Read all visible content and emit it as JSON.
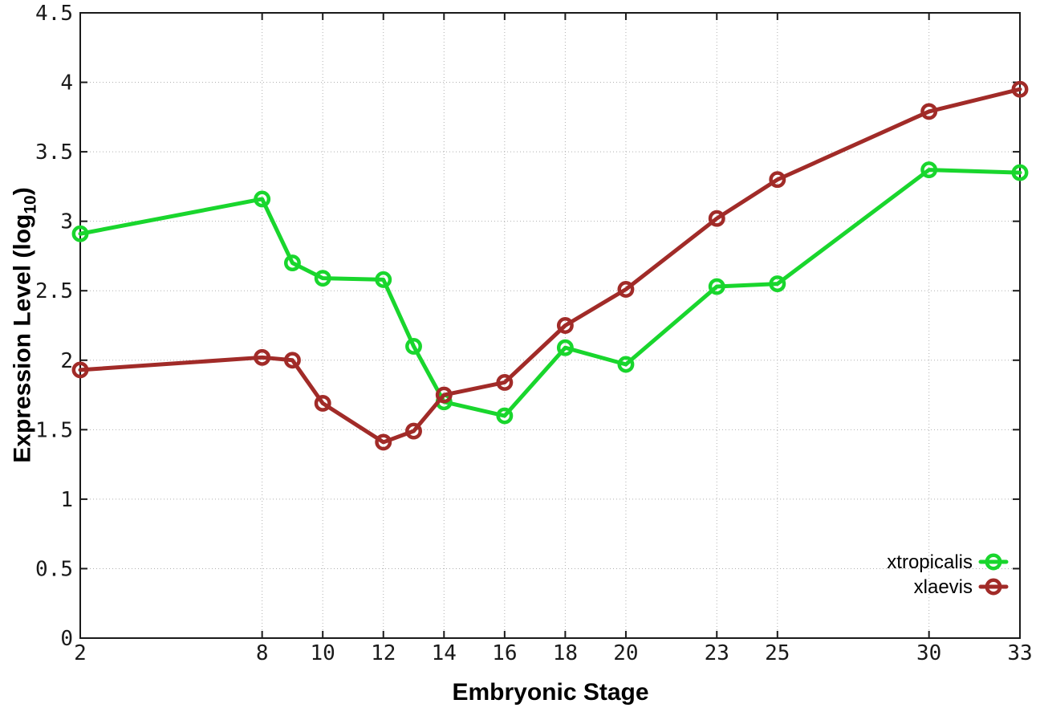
{
  "figure": {
    "background": "#ffffff"
  },
  "axes": {
    "x_label": "Embryonic Stage",
    "y_label_prefix": "Expression Level (log",
    "y_label_sub": "10",
    "y_label_suffix": ")"
  },
  "colors": {
    "grid": "#b0b0b0",
    "axis": "#1a1a1a",
    "tick_label": "#1a1a1a",
    "legend_text": "#000000"
  },
  "chart_data": {
    "type": "line",
    "title": "",
    "xlabel": "Embryonic Stage",
    "ylabel": "Expression Level (log10)",
    "x": [
      2,
      8,
      9,
      10,
      12,
      13,
      14,
      16,
      18,
      20,
      23,
      25,
      30,
      33
    ],
    "xtick_labels": [
      2,
      8,
      10,
      12,
      14,
      16,
      18,
      20,
      23,
      25,
      30,
      33
    ],
    "xlim": [
      2,
      33
    ],
    "ylim": [
      0,
      4.5
    ],
    "ytick_step": 0.5,
    "grid": true,
    "marker": "open-circle",
    "legend_position": "inside-bottom-right",
    "series": [
      {
        "name": "xtropicalis",
        "color": "#19d62d",
        "values": [
          2.91,
          3.16,
          2.7,
          2.59,
          2.58,
          2.1,
          1.7,
          1.6,
          2.09,
          1.97,
          2.53,
          2.55,
          3.37,
          3.35
        ]
      },
      {
        "name": "xlaevis",
        "color": "#a12b28",
        "values": [
          1.93,
          2.02,
          2.0,
          1.69,
          1.41,
          1.49,
          1.75,
          1.84,
          2.25,
          2.51,
          3.02,
          3.3,
          3.79,
          3.95
        ]
      }
    ]
  }
}
